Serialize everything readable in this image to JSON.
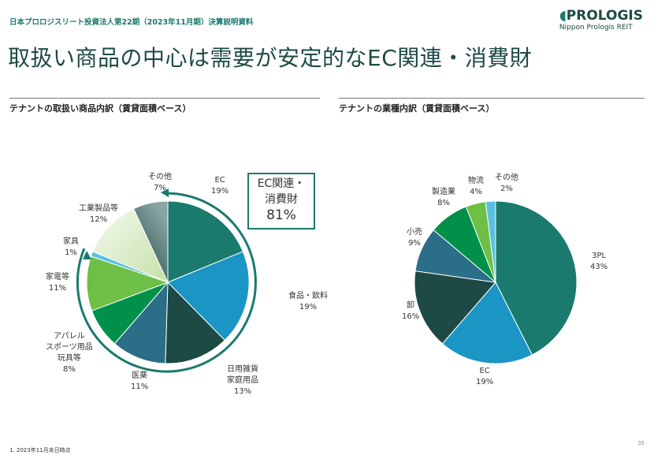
{
  "header": {
    "subtitle": "日本プロロジスリート投資法人第22期（2023年11月期）決算説明資料",
    "title": "取扱い商品の中心は需要が安定的なEC関連・消費財"
  },
  "logo": {
    "brand": "PROLOGIS",
    "sub": "Nippon Prologis REIT"
  },
  "callout": {
    "line1": "EC関連・",
    "line2": "消費財",
    "value": "81%"
  },
  "footer": {
    "note": "1.  2023年11月末日時点",
    "page": "35"
  },
  "chart_data": [
    {
      "type": "pie",
      "title": "テナントの取扱い商品内訳（賃貸面積ベース）",
      "categories": [
        "EC",
        "食品・飲料",
        "日用雑貨\n家庭用品",
        "医薬",
        "アパレル\nスポーツ用品\n玩具等",
        "家電等",
        "家具",
        "工業製品等",
        "その他"
      ],
      "values": [
        19,
        19,
        13,
        11,
        8,
        11,
        1,
        12,
        7
      ],
      "labels": [
        "19%",
        "19%",
        "13%",
        "11%",
        "8%",
        "11%",
        "1%",
        "12%",
        "7%"
      ],
      "colors": [
        "#1a7a6e",
        "#1a95c4",
        "#1d4a45",
        "#2a6e88",
        "#00904a",
        "#6dbf45",
        "#5bc0e0",
        "#e3f0d2",
        "#6f8c8a"
      ]
    },
    {
      "type": "pie",
      "title": "テナントの業種内訳（賃貸面積ベース）",
      "categories": [
        "3PL",
        "EC",
        "卸",
        "小売",
        "製造業",
        "物流",
        "その他"
      ],
      "values": [
        43,
        19,
        16,
        9,
        8,
        4,
        2
      ],
      "labels": [
        "43%",
        "19%",
        "16%",
        "9%",
        "8%",
        "4%",
        "2%"
      ],
      "colors": [
        "#1a7a6e",
        "#1a95c4",
        "#1d4a45",
        "#2a6e88",
        "#00904a",
        "#6dbf45",
        "#5bc0e0"
      ]
    }
  ]
}
